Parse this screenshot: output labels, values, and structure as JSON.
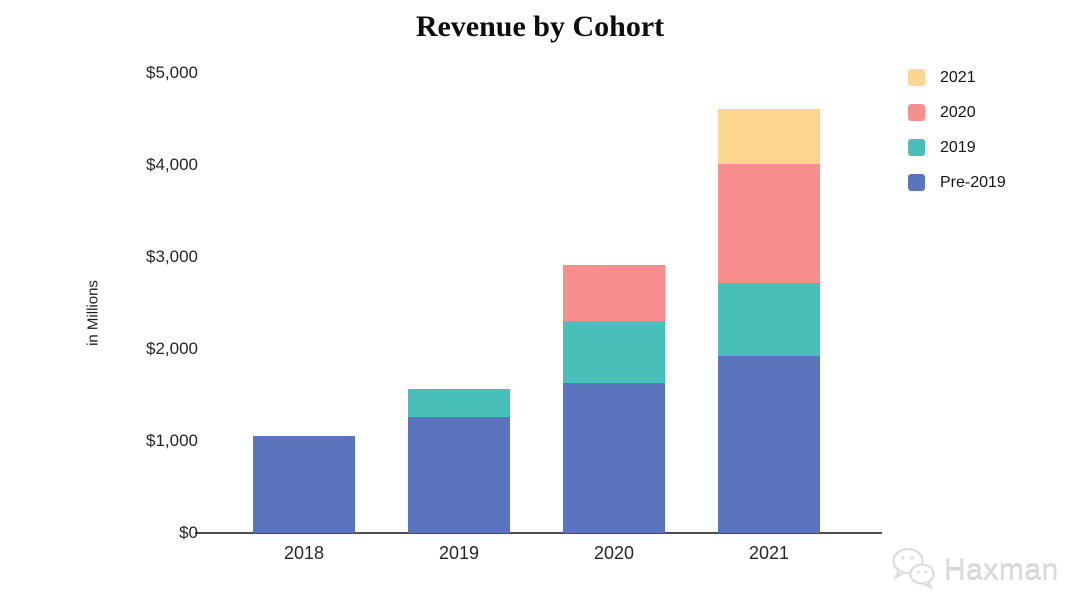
{
  "title": "Revenue by Cohort",
  "watermark": {
    "label": "Haxman"
  },
  "chart_data": {
    "type": "bar",
    "stacked": true,
    "title": "Revenue by Cohort",
    "xlabel": "",
    "ylabel": "in Millions",
    "categories": [
      "2018",
      "2019",
      "2020",
      "2021"
    ],
    "series": [
      {
        "name": "Pre-2019",
        "color": "#5B74BE",
        "values": [
          1050,
          1265,
          1630,
          1925
        ]
      },
      {
        "name": "2019",
        "color": "#48BFB8",
        "values": [
          0,
          305,
          675,
          790
        ]
      },
      {
        "name": "2020",
        "color": "#F98E8E",
        "values": [
          0,
          0,
          610,
          1300
        ]
      },
      {
        "name": "2021",
        "color": "#FCD68C",
        "values": [
          0,
          0,
          0,
          590
        ]
      }
    ],
    "totals": [
      1050,
      1570,
      2915,
      4605
    ],
    "legend": [
      "2021",
      "2020",
      "2019",
      "Pre-2019"
    ],
    "legend_position": "top-right",
    "ytick_labels": [
      "$0",
      "$1,000",
      "$2,000",
      "$3,000",
      "$4,000",
      "$5,000"
    ],
    "ytick_values": [
      0,
      1000,
      2000,
      3000,
      4000,
      5000
    ],
    "ylim": [
      0,
      5000
    ],
    "grid": false
  }
}
